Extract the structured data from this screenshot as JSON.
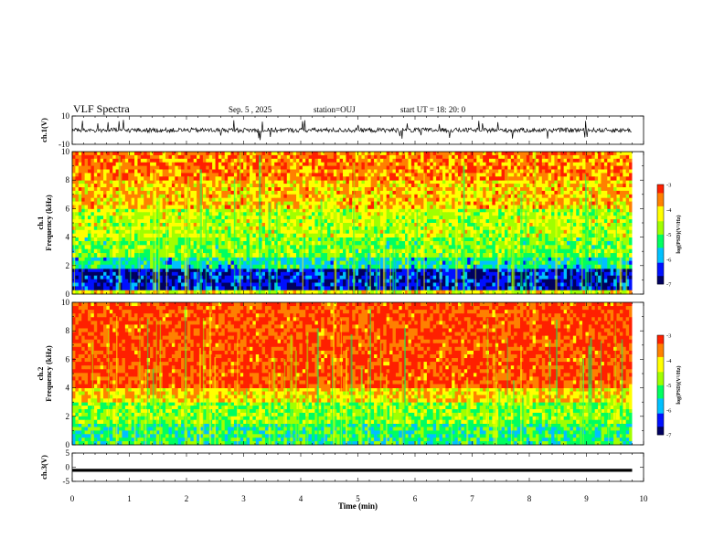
{
  "header": {
    "title": "VLF Spectra",
    "date": "Sep. 5 , 2025",
    "station": "station=OUJ",
    "start": "start UT = 18: 20: 0"
  },
  "colors": {
    "scale": [
      "#000060",
      "#0010ff",
      "#00c0ff",
      "#00ff60",
      "#a0ff00",
      "#ffff00",
      "#ff8000",
      "#ff2000",
      "#ffffff"
    ],
    "waveform": "#000000"
  },
  "chart_data": [
    {
      "type": "line",
      "panel": "ch1-waveform",
      "ylabel": "ch.1(V)",
      "ylim": [
        -10,
        10
      ],
      "yticks": [
        "10",
        "-10"
      ],
      "xlim": [
        0,
        10
      ],
      "trace": "noisy waveform centred near 0 V with sparse spikes, 0 to ~9.8 min"
    },
    {
      "type": "heatmap",
      "panel": "ch1-spectrogram",
      "ylabel": "ch.1\nFrequency (kHz)",
      "ylim": [
        0,
        10
      ],
      "yticks": [
        "0",
        "2",
        "4",
        "6",
        "8",
        "10"
      ],
      "xlim": [
        0,
        10
      ],
      "colorbar": {
        "label": "log(PSD)(V²/Hz)",
        "range": [
          -7,
          -3
        ],
        "ticks": [
          "-3",
          "-4",
          "-5",
          "-6",
          "-7"
        ]
      },
      "bands": [
        {
          "f": [
            0.0,
            0.3
          ],
          "logpsd": -4.2
        },
        {
          "f": [
            0.3,
            1.8
          ],
          "logpsd": -6.6
        },
        {
          "f": [
            1.8,
            2.6
          ],
          "logpsd": -5.5
        },
        {
          "f": [
            2.6,
            4.0
          ],
          "logpsd": -4.9
        },
        {
          "f": [
            4.0,
            6.0
          ],
          "logpsd": -4.5
        },
        {
          "f": [
            6.0,
            8.0
          ],
          "logpsd": -3.9
        },
        {
          "f": [
            8.0,
            10.0
          ],
          "logpsd": -3.5
        }
      ]
    },
    {
      "type": "heatmap",
      "panel": "ch2-spectrogram",
      "ylabel": "ch.2\nFrequency (kHz)",
      "ylim": [
        0,
        10
      ],
      "yticks": [
        "0",
        "2",
        "4",
        "6",
        "8",
        "10"
      ],
      "xlim": [
        0,
        10
      ],
      "colorbar": {
        "label": "log(PSD)(V²/Hz)",
        "range": [
          -7,
          -3
        ],
        "ticks": [
          "-3",
          "-4",
          "-5",
          "-6",
          "-7"
        ]
      },
      "bands": [
        {
          "f": [
            0.0,
            1.5
          ],
          "logpsd": -5.3
        },
        {
          "f": [
            1.5,
            3.0
          ],
          "logpsd": -4.8
        },
        {
          "f": [
            3.0,
            4.0
          ],
          "logpsd": -4.0
        },
        {
          "f": [
            4.0,
            10.0
          ],
          "logpsd": -3.2
        }
      ]
    },
    {
      "type": "line",
      "panel": "ch3-waveform",
      "ylabel": "ch.3(V)",
      "ylim": [
        -5,
        5
      ],
      "yticks": [
        "5",
        "0",
        "-5"
      ],
      "xlim": [
        0,
        10
      ],
      "x": [
        0,
        9.8
      ],
      "y": [
        -1.1,
        -1.1
      ]
    }
  ],
  "xaxis": {
    "label": "Time (min)",
    "ticks": [
      "0",
      "1",
      "2",
      "3",
      "4",
      "5",
      "6",
      "7",
      "8",
      "9",
      "10"
    ]
  }
}
